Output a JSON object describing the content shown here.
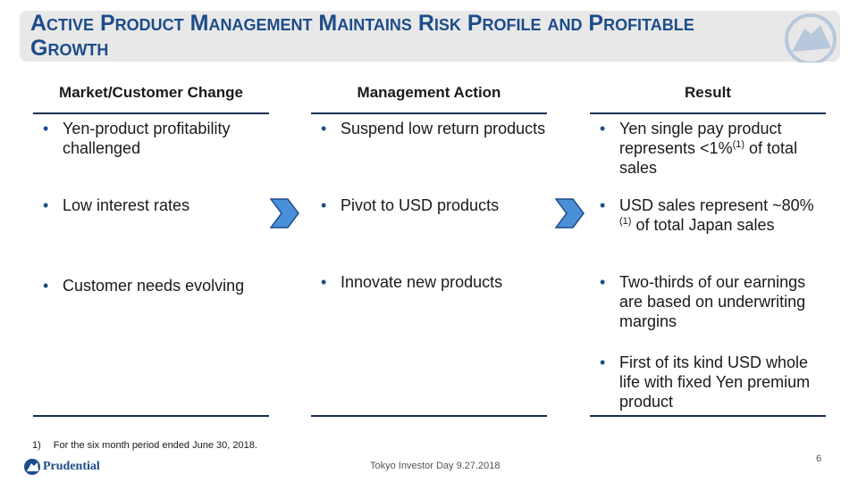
{
  "header": {
    "title": "Active Product Management Maintains Risk Profile and Profitable Growth"
  },
  "columns": [
    {
      "heading": "Market/Customer Change",
      "bullets": [
        {
          "text": "Yen-product profitability challenged"
        },
        {
          "text": "Low interest rates"
        },
        {
          "text": "Customer needs evolving"
        }
      ]
    },
    {
      "heading": "Management Action",
      "bullets": [
        {
          "text": "Suspend low return products"
        },
        {
          "text": "Pivot to USD products"
        },
        {
          "text": "Innovate new products"
        }
      ]
    },
    {
      "heading": "Result",
      "bullets": [
        {
          "text": "Yen single pay product represents <1%",
          "note": "(1)",
          "after": " of total sales"
        },
        {
          "text": "USD sales represent ~80%",
          "note": "(1)",
          "after": " of total Japan sales"
        },
        {
          "text": "Two-thirds of our earnings are based on underwriting margins"
        },
        {
          "text": "First of its kind USD whole life with fixed Yen premium product"
        }
      ]
    }
  ],
  "footnote": {
    "marker": "1)",
    "text": "For the six month period ended June 30, 2018."
  },
  "footer": {
    "event": "Tokyo Investor Day 9.27.2018",
    "page": "6",
    "logo": "Prudential"
  }
}
